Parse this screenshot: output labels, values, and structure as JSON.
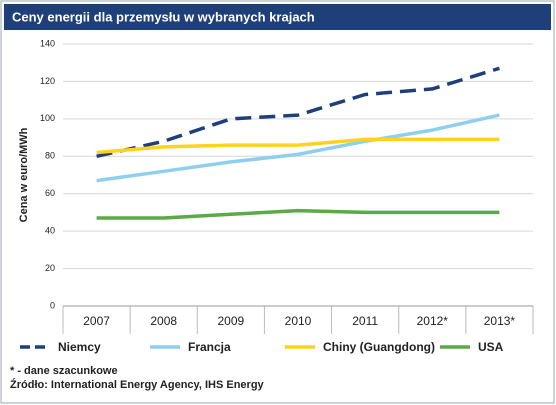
{
  "chart_data": {
    "type": "line",
    "title": "Ceny energii dla przemysłu w wybranych krajach",
    "y_label": "Cena w euro/MWh",
    "categories": [
      "2007",
      "2008",
      "2009",
      "2010",
      "2011",
      "2012*",
      "2013*"
    ],
    "series": [
      {
        "name": "Niemcy",
        "color": "#1f3f7a",
        "dashed": true,
        "values": [
          80,
          88,
          100,
          102,
          113,
          116,
          127
        ]
      },
      {
        "name": "Francja",
        "color": "#8fcfee",
        "dashed": false,
        "values": [
          67,
          72,
          77,
          81,
          88,
          94,
          102
        ]
      },
      {
        "name": "Chiny (Guangdong)",
        "color": "#ffd21f",
        "dashed": false,
        "values": [
          82,
          85,
          86,
          86,
          89,
          89,
          89
        ]
      },
      {
        "name": "USA",
        "color": "#5aaa46",
        "dashed": false,
        "values": [
          47,
          47,
          49,
          51,
          50,
          50,
          50
        ]
      }
    ],
    "ylim": [
      0,
      140
    ],
    "yticks": [
      0,
      20,
      40,
      60,
      80,
      100,
      120,
      140
    ],
    "grid": true,
    "notes": [
      "* - dane szacunkowe",
      "Źródło: International Energy Agency, IHS Energy"
    ]
  }
}
